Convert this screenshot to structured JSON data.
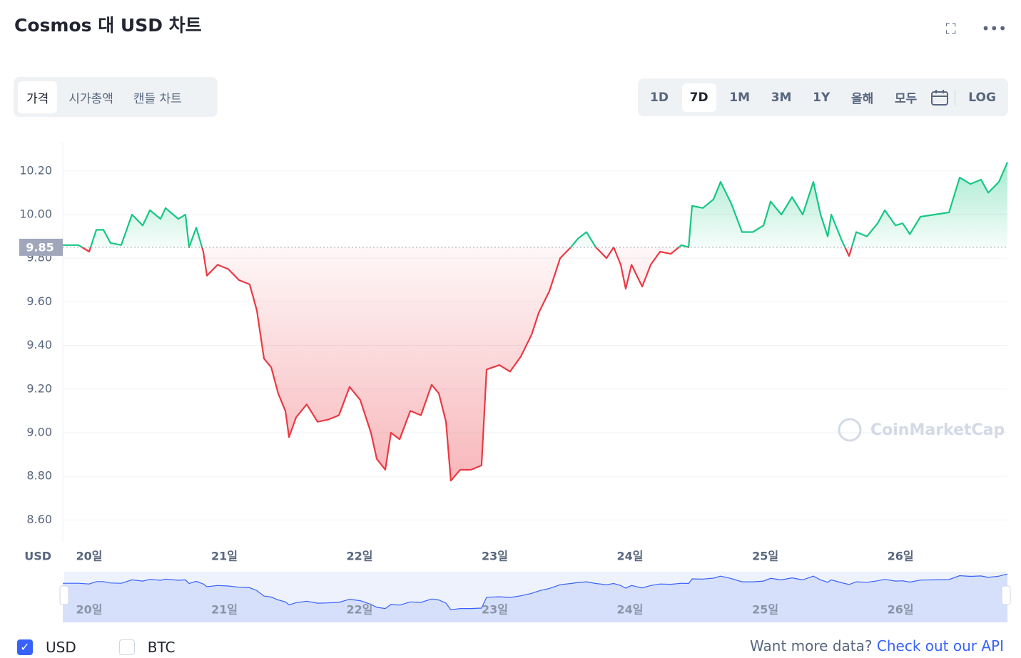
{
  "header": {
    "title": "Cosmos 대 USD 차트"
  },
  "tabs": [
    "가격",
    "시가총액",
    "캔들 차트"
  ],
  "ranges": [
    "1D",
    "7D",
    "1M",
    "3M",
    "1Y",
    "올해",
    "모두"
  ],
  "log_button": "LOG",
  "legend": [
    "USD",
    "BTC"
  ],
  "footer": {
    "text": "Want more data?",
    "link": "Check out our API"
  },
  "chart_data": {
    "type": "line",
    "y_axis_label": "USD",
    "watermark": "CoinMarketCap",
    "reference": {
      "value": 9.85,
      "label": "9.85"
    },
    "xlim": [
      19.805,
      26.791
    ],
    "xticks": [
      {
        "value": 20,
        "label": "20일"
      },
      {
        "value": 21,
        "label": "21일"
      },
      {
        "value": 22,
        "label": "22일"
      },
      {
        "value": 23,
        "label": "23일"
      },
      {
        "value": 24,
        "label": "24일"
      },
      {
        "value": 25,
        "label": "25일"
      },
      {
        "value": 26,
        "label": "26일"
      }
    ],
    "ylim": [
      8.5,
      10.33
    ],
    "yticks": [
      {
        "value": 8.6,
        "label": "8.60"
      },
      {
        "value": 8.8,
        "label": "8.80"
      },
      {
        "value": 9.0,
        "label": "9.00"
      },
      {
        "value": 9.2,
        "label": "9.20"
      },
      {
        "value": 9.4,
        "label": "9.40"
      },
      {
        "value": 9.6,
        "label": "9.60"
      },
      {
        "value": 9.8,
        "label": "9.80"
      },
      {
        "value": 10.0,
        "label": "10.00"
      },
      {
        "value": 10.2,
        "label": "10.20"
      }
    ],
    "grid": true,
    "up_color": "#16c784",
    "down_color": "#ea3943",
    "x": [
      19.805,
      19.921,
      20.0,
      20.053,
      20.106,
      20.158,
      20.237,
      20.317,
      20.396,
      20.449,
      20.528,
      20.565,
      20.66,
      20.712,
      20.739,
      20.792,
      20.844,
      20.871,
      20.95,
      21.029,
      21.108,
      21.187,
      21.214,
      21.24,
      21.293,
      21.346,
      21.398,
      21.451,
      21.478,
      21.53,
      21.609,
      21.689,
      21.768,
      21.847,
      21.926,
      22.005,
      22.084,
      22.127,
      22.19,
      22.232,
      22.296,
      22.375,
      22.454,
      22.533,
      22.586,
      22.639,
      22.675,
      22.744,
      22.823,
      22.902,
      22.939,
      23.034,
      23.113,
      23.193,
      23.272,
      23.325,
      23.404,
      23.483,
      23.562,
      23.615,
      23.678,
      23.747,
      23.826,
      23.879,
      23.931,
      23.968,
      24.011,
      24.09,
      24.153,
      24.222,
      24.301,
      24.38,
      24.433,
      24.459,
      24.538,
      24.617,
      24.67,
      24.749,
      24.828,
      24.908,
      24.987,
      25.04,
      25.119,
      25.198,
      25.277,
      25.356,
      25.409,
      25.462,
      25.488,
      25.567,
      25.62,
      25.673,
      25.752,
      25.831,
      25.884,
      25.963,
      26.016,
      26.069,
      26.148,
      26.253,
      26.359,
      26.438,
      26.517,
      26.596,
      26.649,
      26.728,
      26.791
    ],
    "series": [
      {
        "name": "USD",
        "color": "#16c784",
        "values": [
          9.86,
          9.86,
          9.83,
          9.93,
          9.93,
          9.87,
          9.86,
          10.0,
          9.95,
          10.02,
          9.98,
          10.03,
          9.98,
          10.0,
          9.85,
          9.94,
          9.83,
          9.72,
          9.77,
          9.75,
          9.7,
          9.68,
          9.62,
          9.56,
          9.34,
          9.3,
          9.18,
          9.1,
          8.98,
          9.07,
          9.13,
          9.05,
          9.06,
          9.08,
          9.21,
          9.15,
          9.0,
          8.88,
          8.83,
          9.0,
          8.97,
          9.1,
          9.08,
          9.22,
          9.18,
          9.05,
          8.78,
          8.83,
          8.83,
          8.85,
          9.29,
          9.31,
          9.28,
          9.35,
          9.45,
          9.55,
          9.65,
          9.8,
          9.85,
          9.89,
          9.92,
          9.85,
          9.8,
          9.85,
          9.77,
          9.66,
          9.77,
          9.67,
          9.77,
          9.83,
          9.82,
          9.86,
          9.85,
          10.04,
          10.03,
          10.07,
          10.15,
          10.05,
          9.92,
          9.92,
          9.95,
          10.06,
          10.0,
          10.08,
          10.0,
          10.15,
          10.0,
          9.9,
          10.0,
          9.88,
          9.81,
          9.92,
          9.9,
          9.96,
          10.02,
          9.95,
          9.96,
          9.91,
          9.99,
          10.0,
          10.01,
          10.17,
          10.14,
          10.16,
          10.1,
          10.15,
          10.24
        ]
      }
    ]
  }
}
